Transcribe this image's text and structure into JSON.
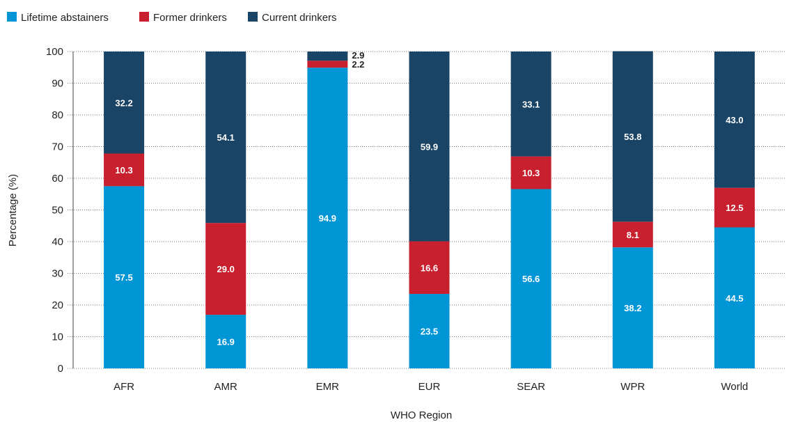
{
  "chart_data": {
    "type": "bar",
    "stacked": true,
    "title": "",
    "xlabel": "WHO Region",
    "ylabel": "Percentage (%)",
    "ylim": [
      0,
      100
    ],
    "yticks": [
      "0",
      "10",
      "20",
      "30",
      "40",
      "50",
      "60",
      "70",
      "80",
      "90",
      "100"
    ],
    "grid": "horizontal dotted",
    "legend_position": "top-left",
    "categories": [
      "AFR",
      "AMR",
      "EMR",
      "EUR",
      "SEAR",
      "WPR",
      "World"
    ],
    "series": [
      {
        "name": "Lifetime abstainers",
        "color": "#0096d6",
        "values": [
          57.5,
          16.9,
          94.9,
          23.5,
          56.6,
          38.2,
          44.5
        ],
        "labels": [
          "57.5",
          "16.9",
          "94.9",
          "23.5",
          "56.6",
          "38.2",
          "44.5"
        ]
      },
      {
        "name": "Former drinkers",
        "color": "#c8202f",
        "values": [
          10.3,
          29.0,
          2.2,
          16.6,
          10.3,
          8.1,
          12.5
        ],
        "labels": [
          "10.3",
          "29.0",
          "2.2",
          "16.6",
          "10.3",
          "8.1",
          "12.5"
        ]
      },
      {
        "name": "Current drinkers",
        "color": "#1a4466",
        "values": [
          32.2,
          54.1,
          2.9,
          59.9,
          33.1,
          53.8,
          43.0
        ],
        "labels": [
          "32.2",
          "54.1",
          "2.9",
          "59.9",
          "33.1",
          "53.8",
          "43.0"
        ]
      }
    ]
  }
}
